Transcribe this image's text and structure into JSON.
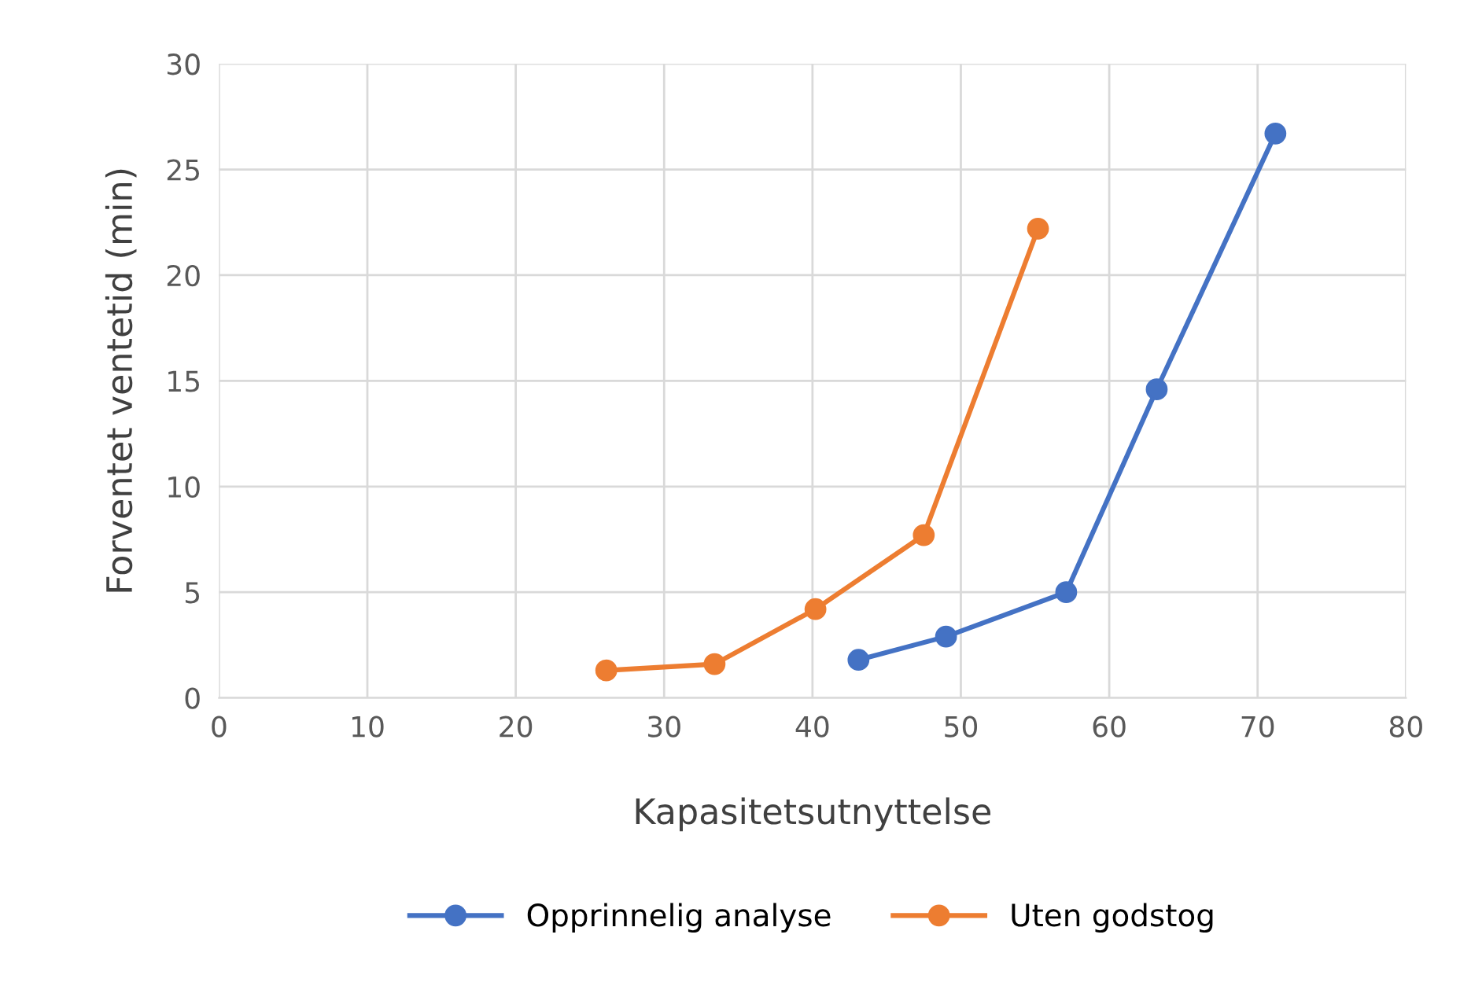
{
  "chart_data": {
    "type": "line",
    "xlabel": "Kapasitetsutnyttelse",
    "ylabel": "Forventet ventetid (min)",
    "xlim": [
      0,
      80
    ],
    "xticks": [
      0,
      10,
      20,
      30,
      40,
      50,
      60,
      70,
      80
    ],
    "ylim": [
      0,
      30
    ],
    "yticks": [
      0,
      5,
      10,
      15,
      20,
      25,
      30
    ],
    "grid": true,
    "legend": "bottom",
    "marker": "circle",
    "line_style": "solid",
    "series": [
      {
        "name": "Opprinnelig analyse",
        "color": "#4472c4",
        "x": [
          43.1,
          49.0,
          57.1,
          63.2,
          71.2
        ],
        "values": [
          1.8,
          2.9,
          5.0,
          14.6,
          26.7
        ]
      },
      {
        "name": "Uten godstog",
        "color": "#ed7d31",
        "x": [
          26.1,
          33.4,
          40.2,
          47.5,
          55.2
        ],
        "values": [
          1.3,
          1.6,
          4.2,
          7.7,
          22.2
        ]
      }
    ]
  }
}
